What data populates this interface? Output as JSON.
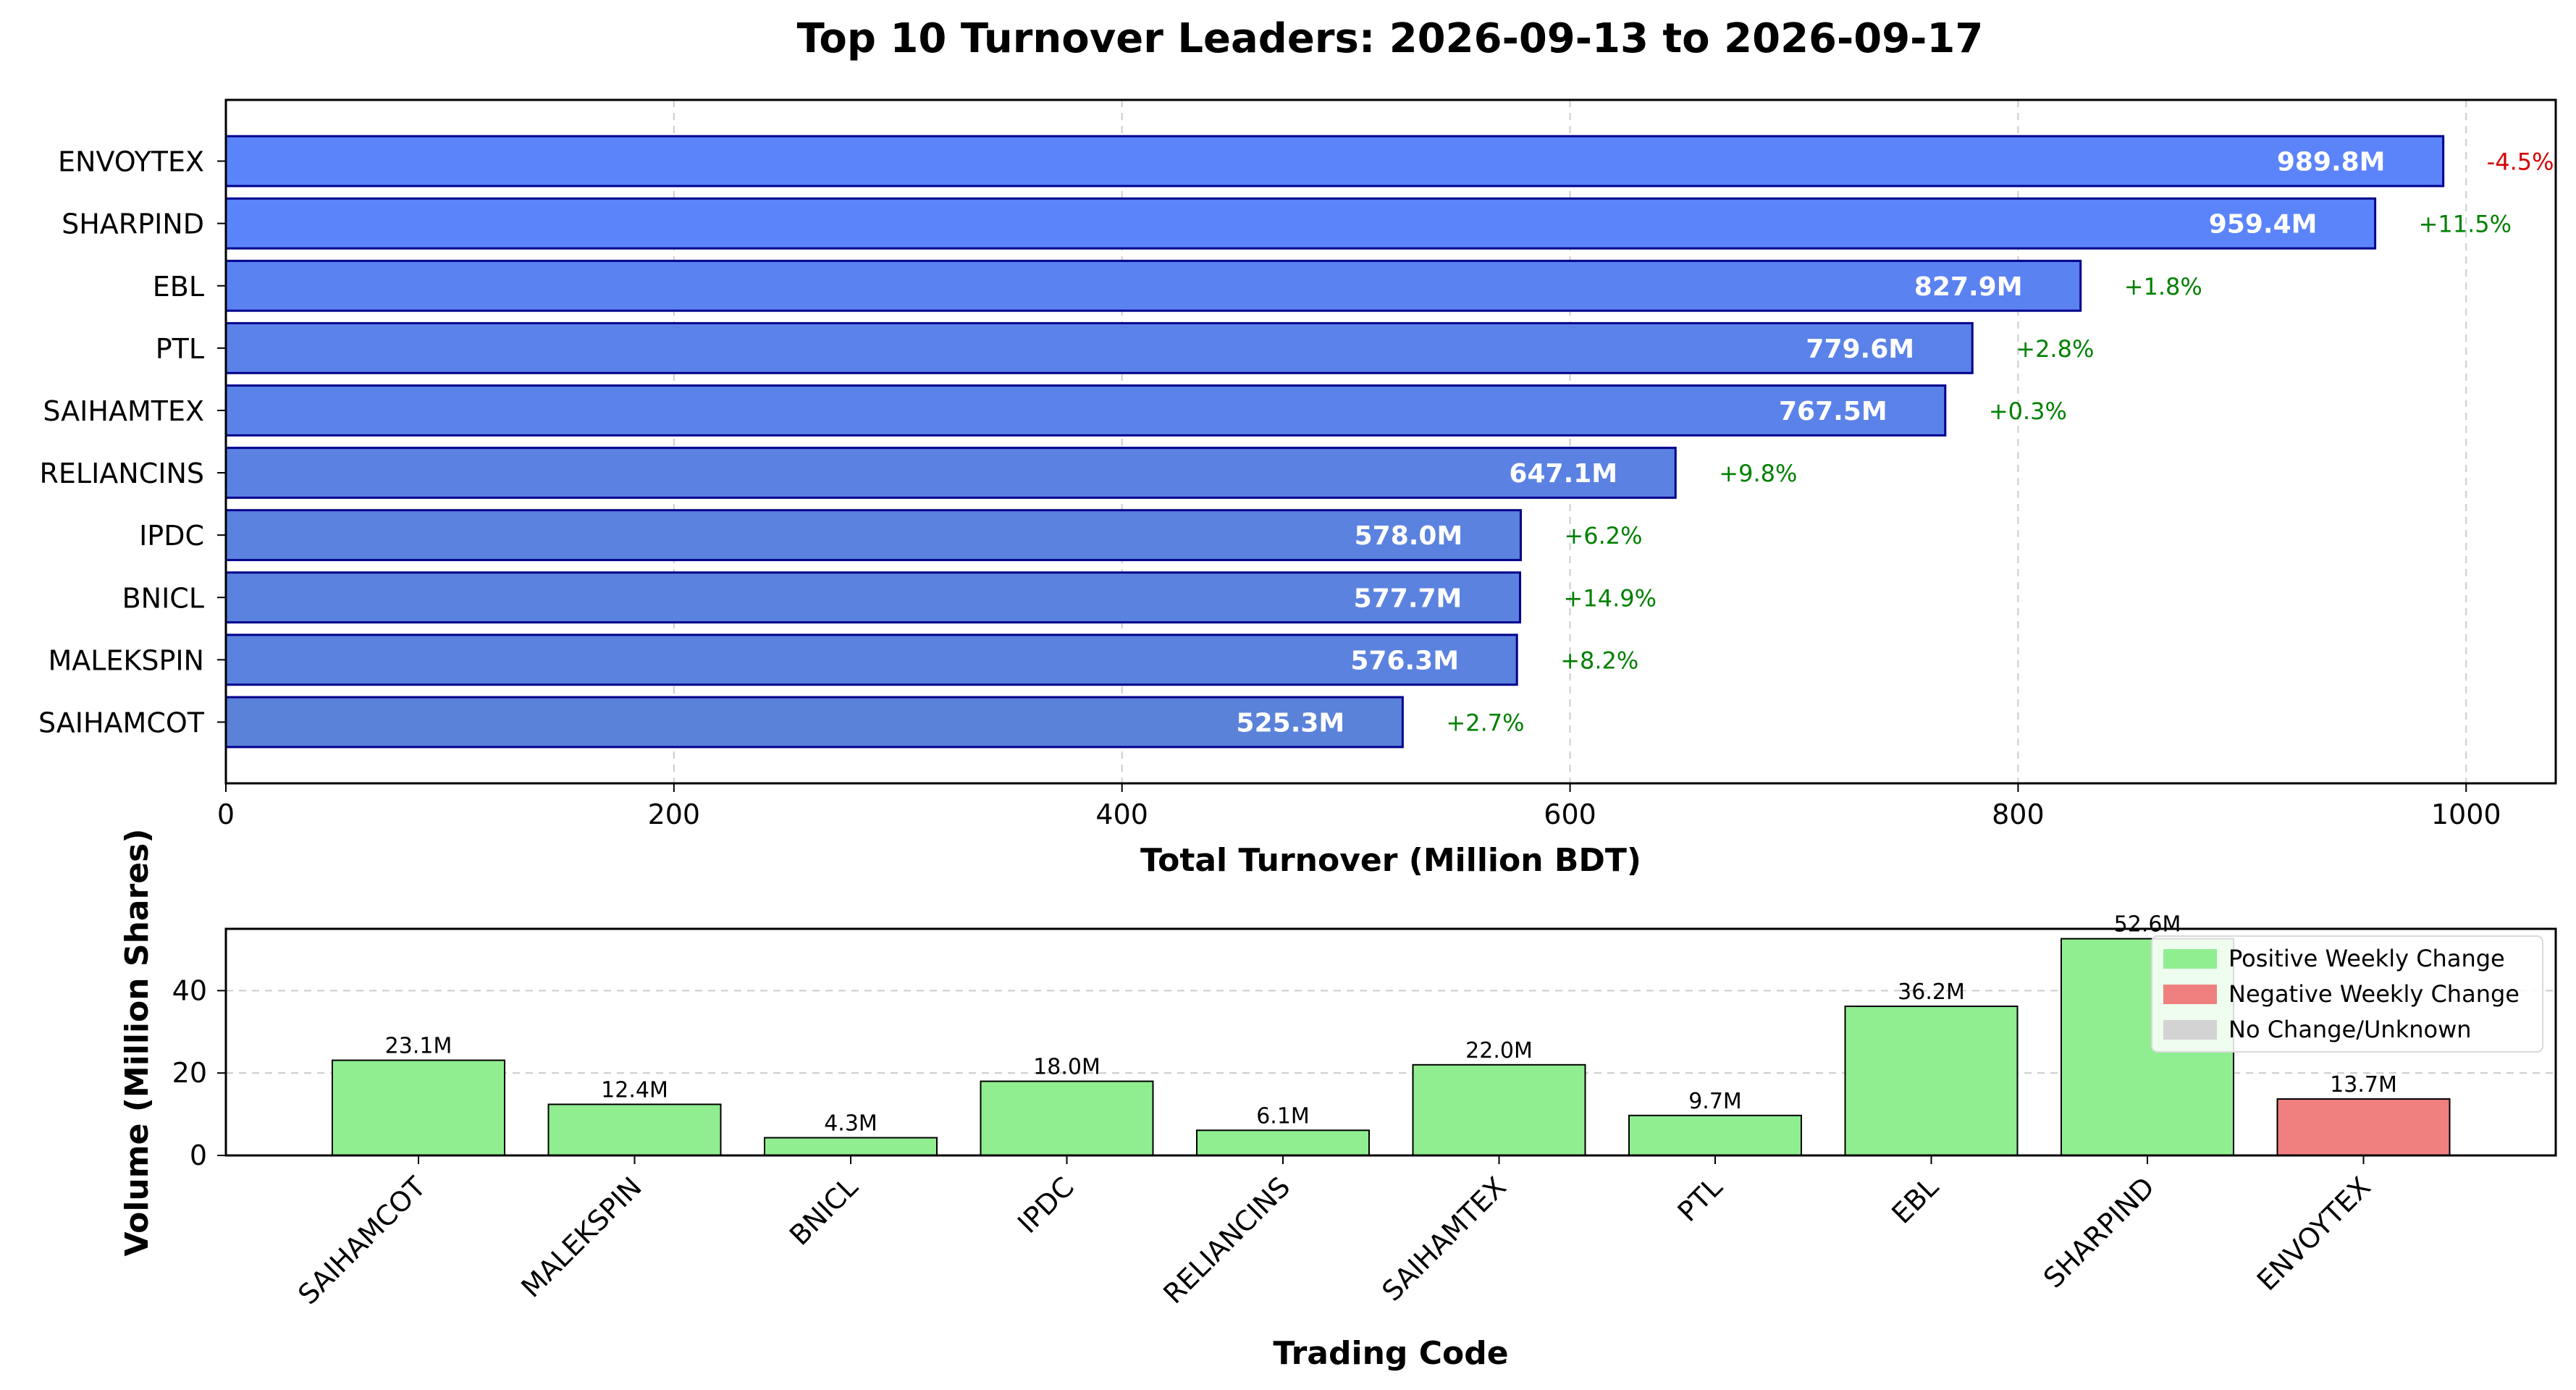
{
  "chart_data": [
    {
      "type": "bar",
      "orientation": "horizontal",
      "title": "Top 10 Turnover Leaders: 2026-09-13 to 2026-09-17",
      "xlabel": "Total Turnover (Million BDT)",
      "ylabel": "",
      "xlim": [
        0,
        1040
      ],
      "xticks": [
        "0",
        "200",
        "400",
        "600",
        "800",
        "1000"
      ],
      "grid": "x-dashed",
      "categories": [
        "ENVOYTEX",
        "SHARPIND",
        "EBL",
        "PTL",
        "SAIHAMTEX",
        "RELIANCINS",
        "IPDC",
        "BNICL",
        "MALEKSPIN",
        "SAIHAMCOT"
      ],
      "values": [
        989.8,
        959.4,
        827.9,
        779.6,
        767.5,
        647.1,
        578.0,
        577.7,
        576.3,
        525.3
      ],
      "value_labels": [
        "989.8M",
        "959.4M",
        "827.9M",
        "779.6M",
        "767.5M",
        "647.1M",
        "578.0M",
        "577.7M",
        "576.3M",
        "525.3M"
      ],
      "weekly_change_labels": [
        "-4.5%",
        "+11.5%",
        "+1.8%",
        "+2.8%",
        "+0.3%",
        "+9.8%",
        "+6.2%",
        "+14.9%",
        "+8.2%",
        "+2.7%"
      ],
      "bar_colors": [
        "#5b84fb",
        "#5b84fb",
        "#5b82f1",
        "#5b82e8",
        "#5b82e8",
        "#5b82e3",
        "#5b82de",
        "#5b82de",
        "#5b82de",
        "#5b82d9"
      ],
      "bar_edge_color": "#00008b",
      "positive_change_color": "#008000",
      "negative_change_color": "#d40000"
    },
    {
      "type": "bar",
      "orientation": "vertical",
      "xlabel": "Trading Code",
      "ylabel": "Volume (Million Shares)",
      "ylim": [
        0,
        55
      ],
      "yticks": [
        "0",
        "20",
        "40"
      ],
      "grid": "y-dashed",
      "categories": [
        "SAIHAMCOT",
        "MALEKSPIN",
        "BNICL",
        "IPDC",
        "RELIANCINS",
        "SAIHAMTEX",
        "PTL",
        "EBL",
        "SHARPIND",
        "ENVOYTEX"
      ],
      "values": [
        23.1,
        12.4,
        4.3,
        18.0,
        6.1,
        22.0,
        9.7,
        36.2,
        52.6,
        13.7
      ],
      "value_labels": [
        "23.1M",
        "12.4M",
        "4.3M",
        "18.0M",
        "6.1M",
        "22.0M",
        "9.7M",
        "36.2M",
        "52.6M",
        "13.7M"
      ],
      "change_direction": [
        "positive",
        "positive",
        "positive",
        "positive",
        "positive",
        "positive",
        "positive",
        "positive",
        "positive",
        "negative"
      ],
      "legend": {
        "placement": "upper-right",
        "entries": [
          {
            "label": "Positive Weekly Change",
            "color": "#90ee90"
          },
          {
            "label": "Negative Weekly Change",
            "color": "#f08080"
          },
          {
            "label": "No Change/Unknown",
            "color": "#d3d3d3"
          }
        ]
      }
    }
  ]
}
